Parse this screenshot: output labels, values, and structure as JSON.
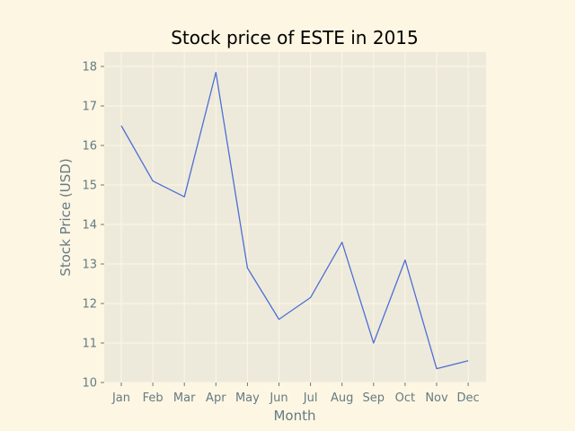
{
  "chart_data": {
    "type": "line",
    "title": "Stock price of ESTE in 2015",
    "xlabel": "Month",
    "ylabel": "Stock Price (USD)",
    "categories": [
      "Jan",
      "Feb",
      "Mar",
      "Apr",
      "May",
      "Jun",
      "Jul",
      "Aug",
      "Sep",
      "Oct",
      "Nov",
      "Dec"
    ],
    "series": [
      {
        "values": [
          16.5,
          15.1,
          14.7,
          17.85,
          12.9,
          11.6,
          12.15,
          13.55,
          11.0,
          13.1,
          10.35,
          10.55
        ],
        "color": "#4c6fd6"
      }
    ],
    "ylim": [
      10,
      18
    ],
    "yticks": [
      "10",
      "11",
      "12",
      "13",
      "14",
      "15",
      "16",
      "17",
      "18"
    ],
    "grid": true,
    "legend": "none",
    "colors": {
      "figure_bg": "#fdf6e3",
      "plot_bg": "#eeeadb",
      "grid": "#fdf6e3",
      "text": "#657b83"
    }
  }
}
